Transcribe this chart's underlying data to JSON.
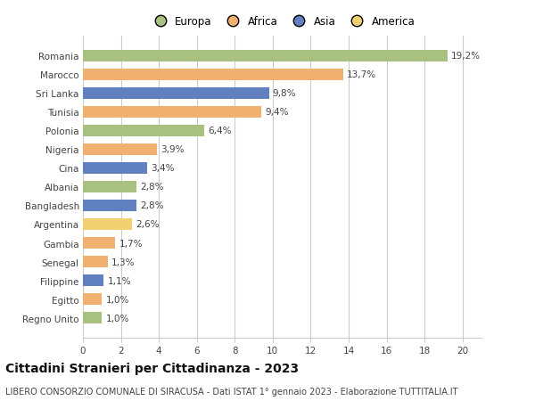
{
  "categories": [
    "Romania",
    "Marocco",
    "Sri Lanka",
    "Tunisia",
    "Polonia",
    "Nigeria",
    "Cina",
    "Albania",
    "Bangladesh",
    "Argentina",
    "Gambia",
    "Senegal",
    "Filippine",
    "Egitto",
    "Regno Unito"
  ],
  "values": [
    19.2,
    13.7,
    9.8,
    9.4,
    6.4,
    3.9,
    3.4,
    2.8,
    2.8,
    2.6,
    1.7,
    1.3,
    1.1,
    1.0,
    1.0
  ],
  "labels": [
    "19,2%",
    "13,7%",
    "9,8%",
    "9,4%",
    "6,4%",
    "3,9%",
    "3,4%",
    "2,8%",
    "2,8%",
    "2,6%",
    "1,7%",
    "1,3%",
    "1,1%",
    "1,0%",
    "1,0%"
  ],
  "colors": [
    "#a8c080",
    "#f0b070",
    "#6080c0",
    "#f0b070",
    "#a8c080",
    "#f0b070",
    "#6080c0",
    "#a8c080",
    "#6080c0",
    "#f0d070",
    "#f0b070",
    "#f0b070",
    "#6080c0",
    "#f0b070",
    "#a8c080"
  ],
  "legend_labels": [
    "Europa",
    "Africa",
    "Asia",
    "America"
  ],
  "legend_colors": [
    "#a8c080",
    "#f0b070",
    "#6080c0",
    "#f0d070"
  ],
  "xlim": [
    0,
    21
  ],
  "xticks": [
    0,
    2,
    4,
    6,
    8,
    10,
    12,
    14,
    16,
    18,
    20
  ],
  "title": "Cittadini Stranieri per Cittadinanza - 2023",
  "subtitle": "LIBERO CONSORZIO COMUNALE DI SIRACUSA - Dati ISTAT 1° gennaio 2023 - Elaborazione TUTTITALIA.IT",
  "title_fontsize": 10,
  "subtitle_fontsize": 7,
  "label_fontsize": 7.5,
  "tick_fontsize": 7.5,
  "legend_fontsize": 8.5,
  "bar_height": 0.62,
  "background_color": "#ffffff",
  "grid_color": "#cccccc"
}
